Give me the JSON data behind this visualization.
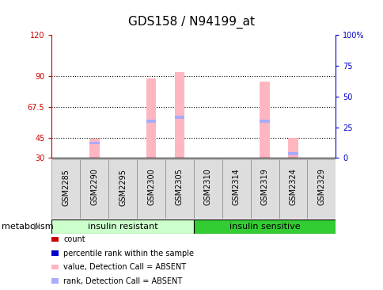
{
  "title": "GDS158 / N94199_at",
  "samples": [
    "GSM2285",
    "GSM2290",
    "GSM2295",
    "GSM2300",
    "GSM2305",
    "GSM2310",
    "GSM2314",
    "GSM2319",
    "GSM2324",
    "GSM2329"
  ],
  "pink_bar_values": [
    0,
    44,
    0,
    88,
    93,
    0,
    0,
    86,
    45,
    0
  ],
  "blue_bar_values": [
    0,
    41,
    0,
    57,
    60,
    0,
    0,
    57,
    33,
    0
  ],
  "bar_bottom": 30,
  "ylim_left": [
    30,
    120
  ],
  "ylim_right": [
    0,
    100
  ],
  "yticks_left": [
    30,
    45,
    67.5,
    90,
    120
  ],
  "yticks_right": [
    0,
    25,
    50,
    75,
    100
  ],
  "ytick_labels_left": [
    "30",
    "45",
    "67.5",
    "90",
    "120"
  ],
  "ytick_labels_right": [
    "0",
    "25",
    "50",
    "75",
    "100%"
  ],
  "hlines": [
    45,
    67.5,
    90
  ],
  "left_axis_color": "#CC0000",
  "right_axis_color": "#0000CC",
  "pink_color": "#FFB6C1",
  "blue_color": "#AAAAFF",
  "legend_items": [
    {
      "color": "#CC0000",
      "label": "count"
    },
    {
      "color": "#0000CC",
      "label": "percentile rank within the sample"
    },
    {
      "color": "#FFB6C1",
      "label": "value, Detection Call = ABSENT"
    },
    {
      "color": "#AAAAFF",
      "label": "rank, Detection Call = ABSENT"
    }
  ],
  "bar_width": 0.35,
  "background_color": "#FFFFFF",
  "group_spans": [
    {
      "label": "insulin resistant",
      "start": 0,
      "end": 4,
      "facecolor": "#CCFFCC",
      "edgecolor": "#000000"
    },
    {
      "label": "insulin sensitive",
      "start": 5,
      "end": 9,
      "facecolor": "#33CC33",
      "edgecolor": "#000000"
    }
  ],
  "group_label": "metabolism",
  "sample_box_color": "#DDDDDD",
  "title_fontsize": 11,
  "tick_label_fontsize": 7,
  "axis_label_fontsize": 8,
  "legend_fontsize": 7
}
